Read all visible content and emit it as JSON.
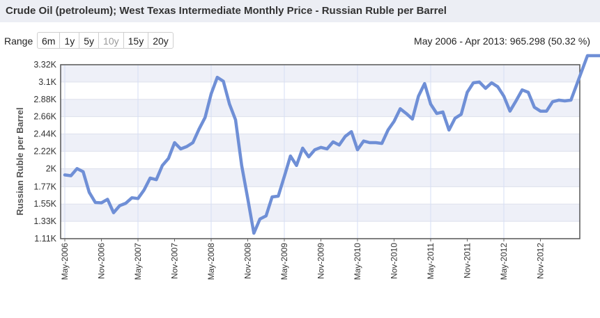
{
  "header": {
    "title": "Crude Oil (petroleum); West Texas Intermediate Monthly Price - Russian Ruble per Barrel"
  },
  "controls": {
    "range_label": "Range",
    "ranges": [
      {
        "label": "6m",
        "disabled": false
      },
      {
        "label": "1y",
        "disabled": false
      },
      {
        "label": "5y",
        "disabled": false
      },
      {
        "label": "10y",
        "disabled": true
      },
      {
        "label": "15y",
        "disabled": false
      },
      {
        "label": "20y",
        "disabled": false
      }
    ],
    "summary": "May 2006 - Apr 2013: 965.298 (50.32 %)"
  },
  "chart_data": {
    "type": "line",
    "title": "Crude Oil (petroleum); West Texas Intermediate Monthly Price - Russian Ruble per Barrel",
    "ylabel": "Russian Ruble per Barrel",
    "xlabel": "",
    "ylim": [
      1110,
      3320
    ],
    "y_ticks": [
      "1.11K",
      "1.33K",
      "1.55K",
      "1.77K",
      "2K",
      "2.22K",
      "2.44K",
      "2.66K",
      "2.88K",
      "3.1K",
      "3.32K"
    ],
    "y_tick_values": [
      1110,
      1330,
      1550,
      1770,
      2000,
      2220,
      2440,
      2660,
      2880,
      3100,
      3320
    ],
    "x_ticks": [
      "May-2006",
      "Nov-2006",
      "May-2007",
      "Nov-2007",
      "May-2008",
      "Nov-2008",
      "May-2009",
      "Nov-2009",
      "May-2010",
      "Nov-2010",
      "May-2011",
      "Nov-2011",
      "May-2012",
      "Nov-2012"
    ],
    "grid": true,
    "line_color": "#6f8fd6",
    "series": [
      {
        "values": [
          1920,
          1910,
          2000,
          1960,
          1700,
          1570,
          1565,
          1610,
          1440,
          1530,
          1560,
          1630,
          1620,
          1730,
          1880,
          1860,
          2040,
          2130,
          2330,
          2250,
          2280,
          2330,
          2500,
          2650,
          2950,
          3160,
          3110,
          2820,
          2620,
          2040,
          1620,
          1180,
          1360,
          1400,
          1640,
          1650,
          1900,
          2160,
          2040,
          2260,
          2150,
          2240,
          2270,
          2250,
          2340,
          2300,
          2410,
          2470,
          2240,
          2350,
          2330,
          2330,
          2320,
          2490,
          2600,
          2760,
          2700,
          2630,
          2920,
          3080,
          2820,
          2700,
          2720,
          2490,
          2640,
          2690,
          2970,
          3090,
          3100,
          3020,
          3090,
          3040,
          2920,
          2730,
          2860,
          3000,
          2970,
          2780,
          2730,
          2730,
          2850,
          2870,
          2860,
          2870,
          3350
        ]
      }
    ]
  }
}
